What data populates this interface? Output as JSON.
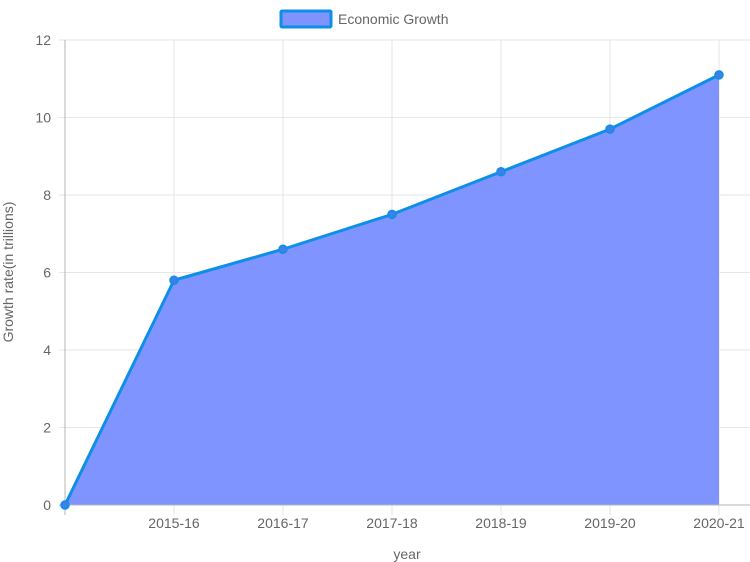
{
  "chart_data": {
    "type": "area",
    "categories": [
      "",
      "2015-16",
      "2016-17",
      "2017-18",
      "2018-19",
      "2019-20",
      "2020-21"
    ],
    "series": [
      {
        "name": "Economic Growth",
        "values": [
          0,
          5.8,
          6.6,
          7.5,
          8.6,
          9.7,
          11.1
        ],
        "line_color": "#0d8fe8",
        "fill_color": "#8094ff"
      }
    ],
    "xlabel": "year",
    "ylabel": "Growth rate(in trillions)",
    "ylim": [
      0,
      12
    ],
    "yticks": [
      0,
      2,
      4,
      6,
      8,
      10,
      12
    ],
    "grid": true,
    "legend_position": "top"
  }
}
